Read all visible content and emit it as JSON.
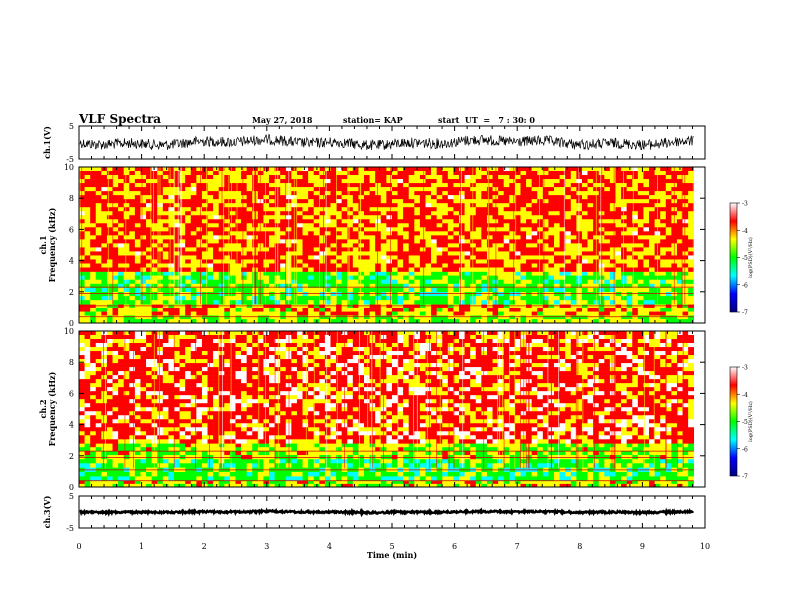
{
  "header": {
    "title": "VLF Spectra",
    "date": "May 27, 2018",
    "station": "station= KAP",
    "start": "start  UT  =   7 : 30: 0"
  },
  "colors": {
    "palette": [
      "#000080",
      "#0000ff",
      "#00ffff",
      "#00ff00",
      "#ffff00",
      "#ff0000",
      "#ffffff"
    ],
    "waveform": "#000000"
  },
  "chart_data": [
    {
      "type": "line",
      "name": "ch1-waveform",
      "ylabel": "ch.1(V)",
      "ylim": [
        -5,
        5
      ],
      "yticks": [
        5,
        -5
      ],
      "mean_level": 0,
      "amplitude": 1.6
    },
    {
      "type": "heatmap",
      "name": "ch1-spectrogram",
      "ylabel": "ch.1\nFrequency  (kHz)",
      "ylim": [
        0,
        10
      ],
      "yticks": [
        0,
        2,
        4,
        6,
        8,
        10
      ],
      "colorbar": {
        "label": "log(PSD)(V²/Hz)",
        "range": [
          -7,
          -3
        ],
        "ticks": [
          -3,
          -4,
          -5,
          -6,
          -7
        ]
      },
      "bands": [
        {
          "from": 0,
          "to": 0.5,
          "log_psd": -4.6
        },
        {
          "from": 0.5,
          "to": 1.2,
          "log_psd": -4.2
        },
        {
          "from": 1.2,
          "to": 3.3,
          "log_psd": -4.9
        },
        {
          "from": 3.3,
          "to": 10,
          "log_psd": -3.9
        }
      ]
    },
    {
      "type": "heatmap",
      "name": "ch2-spectrogram",
      "ylabel": "ch.2\nFrequency  (kHz)",
      "ylim": [
        0,
        10
      ],
      "yticks": [
        0,
        2,
        4,
        6,
        8,
        10
      ],
      "colorbar": {
        "label": "log(PSD)(V²/Hz)",
        "range": [
          -7,
          -3
        ],
        "ticks": [
          -3,
          -4,
          -5,
          -6,
          -7
        ]
      },
      "bands": [
        {
          "from": 0,
          "to": 0.4,
          "log_psd": -4.4
        },
        {
          "from": 0.4,
          "to": 1.8,
          "log_psd": -5.0
        },
        {
          "from": 1.8,
          "to": 2.8,
          "log_psd": -4.5
        },
        {
          "from": 2.8,
          "to": 10,
          "log_psd": -3.7
        }
      ]
    },
    {
      "type": "line",
      "name": "ch3-waveform",
      "ylabel": "ch.3(V)",
      "ylim": [
        -5,
        5
      ],
      "yticks": [
        5,
        -5
      ],
      "mean_level": 0,
      "amplitude": 0.3
    }
  ],
  "xaxis": {
    "label": "Time  (min)",
    "range": [
      0,
      10
    ],
    "ticks": [
      0,
      1,
      2,
      3,
      4,
      5,
      6,
      7,
      8,
      9,
      10
    ],
    "data_end": 9.82
  }
}
